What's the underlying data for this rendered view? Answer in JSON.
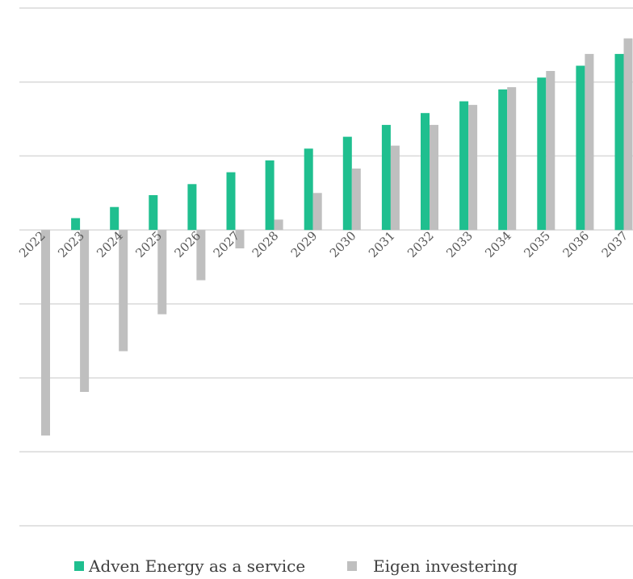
{
  "chart_data": {
    "type": "bar",
    "title": "",
    "xlabel": "",
    "ylabel": "",
    "categories": [
      "2022",
      "2023",
      "2024",
      "2025",
      "2026",
      "2027",
      "2028",
      "2029",
      "2030",
      "2031",
      "2032",
      "2033",
      "2034",
      "2035",
      "2036",
      "2037"
    ],
    "series": [
      {
        "name": "Adven Energy as a service",
        "color": "#1FBF8F",
        "values": [
          0,
          0.16,
          0.31,
          0.47,
          0.62,
          0.78,
          0.94,
          1.1,
          1.26,
          1.42,
          1.58,
          1.74,
          1.9,
          2.06,
          2.22,
          2.38
        ]
      },
      {
        "name": "Eigen investering",
        "color": "#BFBFBF",
        "values": [
          -2.78,
          -2.19,
          -1.64,
          -1.14,
          -0.68,
          -0.25,
          0.14,
          0.5,
          0.83,
          1.14,
          1.42,
          1.69,
          1.93,
          2.15,
          2.38,
          2.59
        ]
      }
    ],
    "ylim": [
      -4,
      3
    ],
    "y_gridlines": [
      -4,
      -3,
      -2,
      -1,
      0,
      1,
      2,
      3
    ],
    "grid": true,
    "legend_position": "bottom"
  }
}
